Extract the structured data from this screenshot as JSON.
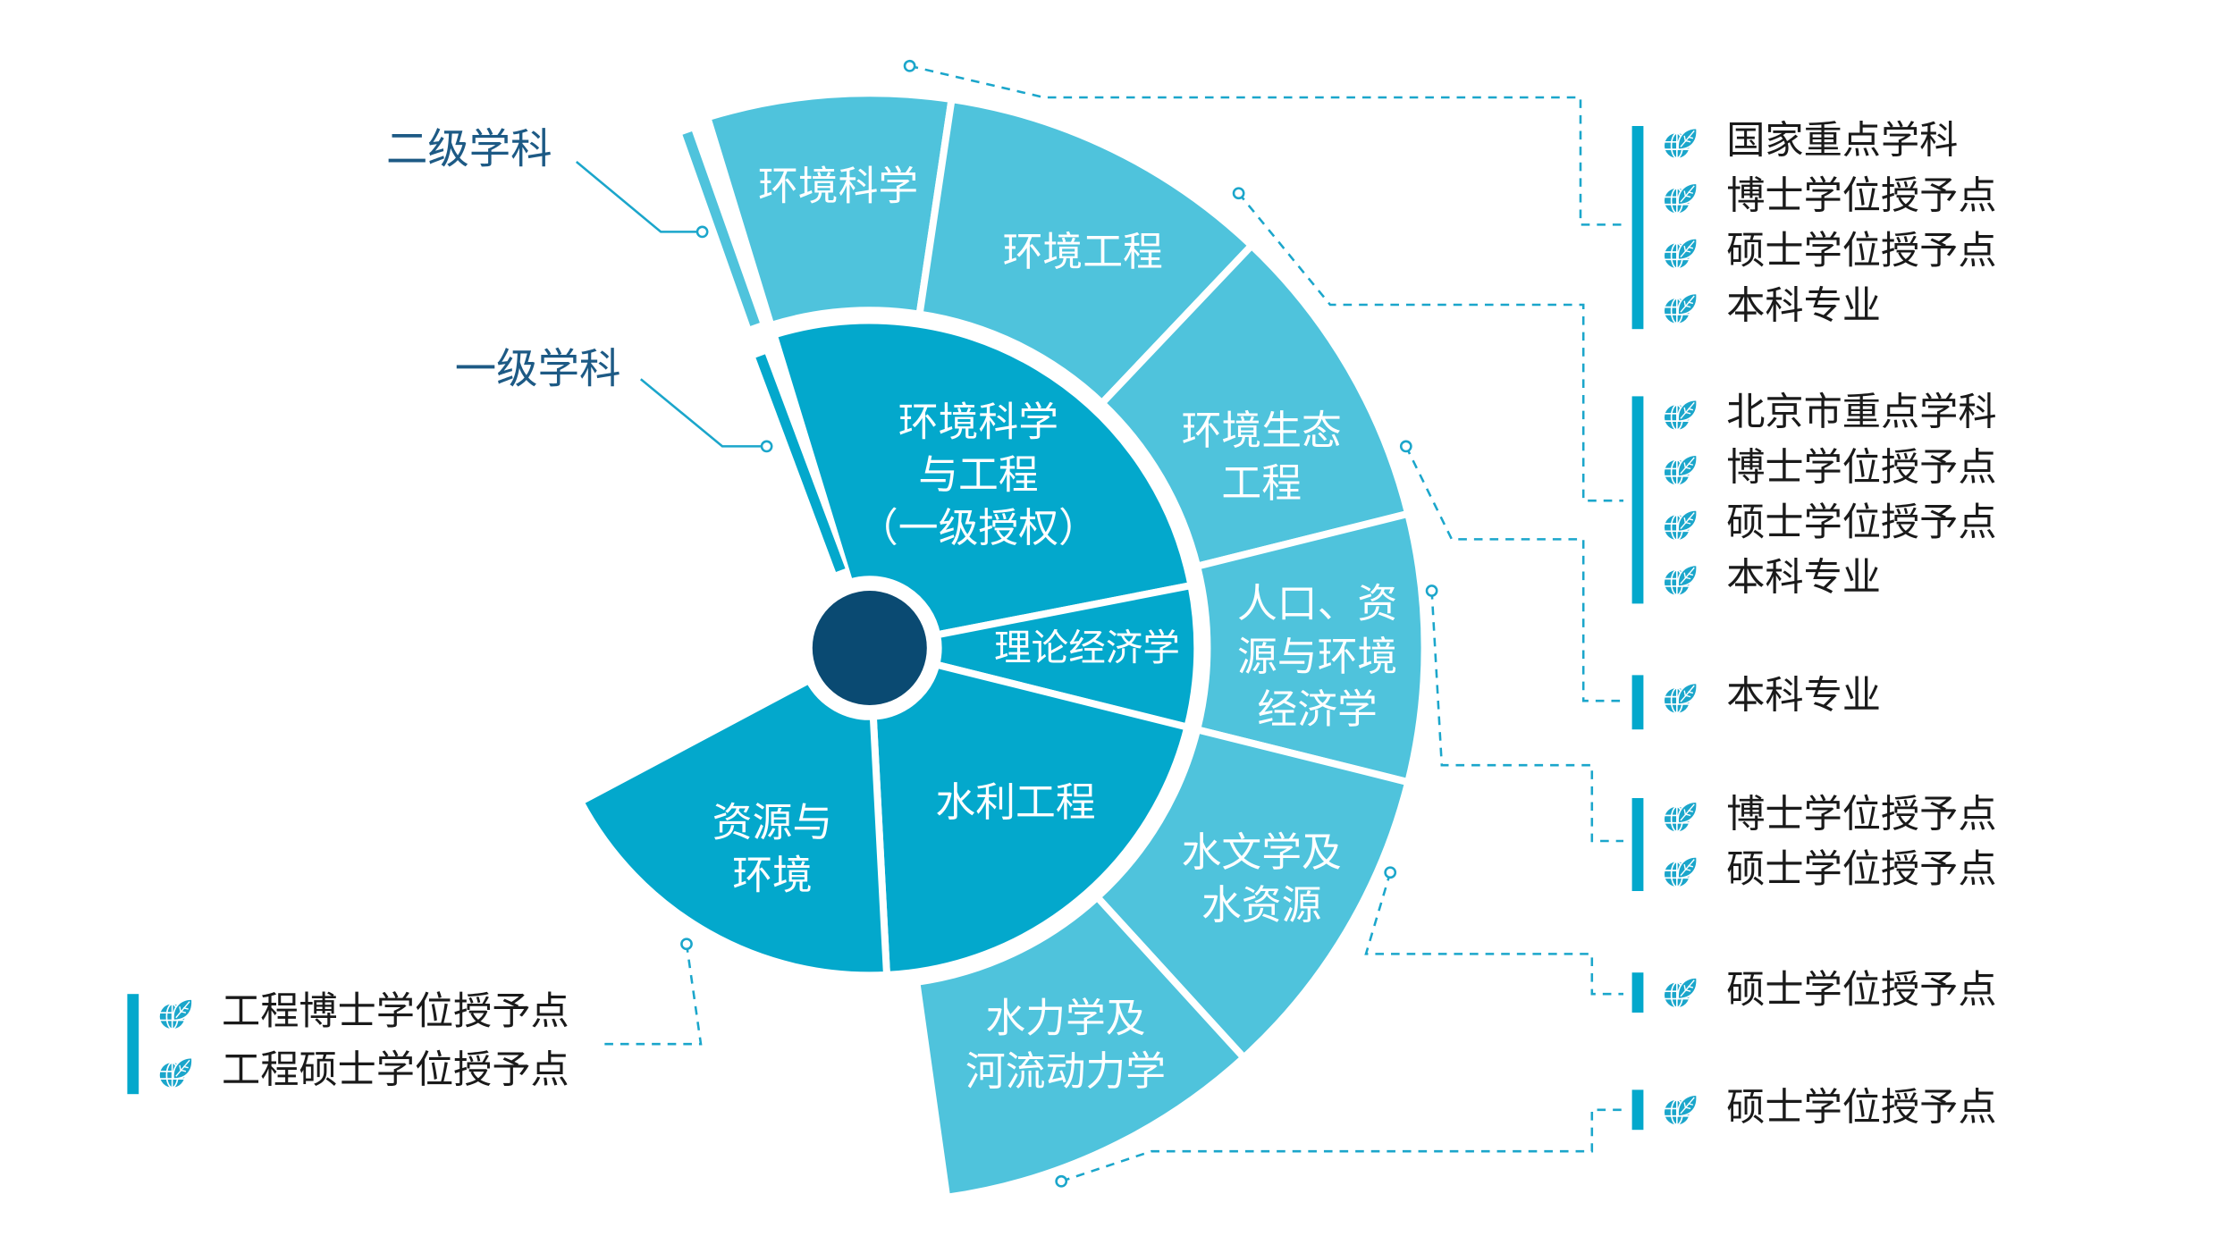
{
  "colors": {
    "inner_ring": "#03a8cc",
    "outer_ring": "#4fc3dc",
    "center": "#0a4a72",
    "connector": "#1ba6cb",
    "callout_text": "#1d5a85"
  },
  "callouts": {
    "level2": "二级学科",
    "level1": "一级学科"
  },
  "inner_ring": [
    {
      "lines": [
        "环境科学",
        "与工程",
        "（一级授权）"
      ]
    },
    {
      "lines": [
        "理论经济学"
      ]
    },
    {
      "lines": [
        "水利工程"
      ]
    },
    {
      "lines": [
        "资源与",
        "环境"
      ]
    }
  ],
  "outer_ring": [
    {
      "lines": [
        "环境科学"
      ]
    },
    {
      "lines": [
        "环境工程"
      ]
    },
    {
      "lines": [
        "环境生态",
        "工程"
      ]
    },
    {
      "lines": [
        "人口、资",
        "源与环境",
        "经济学"
      ]
    },
    {
      "lines": [
        "水文学及",
        "水资源"
      ]
    },
    {
      "lines": [
        "水力学及",
        "河流动力学"
      ]
    }
  ],
  "legend_icon": "globe-leaf-icon",
  "legend_groups": [
    {
      "items": [
        "国家重点学科",
        "博士学位授予点",
        "硕士学位授予点",
        "本科专业"
      ]
    },
    {
      "items": [
        "北京市重点学科",
        "博士学位授予点",
        "硕士学位授予点",
        "本科专业"
      ]
    },
    {
      "items": [
        "本科专业"
      ]
    },
    {
      "items": [
        "博士学位授予点",
        "硕士学位授予点"
      ]
    },
    {
      "items": [
        "硕士学位授予点"
      ]
    },
    {
      "items": [
        "硕士学位授予点"
      ]
    },
    {
      "items": [
        "工程博士学位授予点",
        "工程硕士学位授予点"
      ]
    }
  ]
}
